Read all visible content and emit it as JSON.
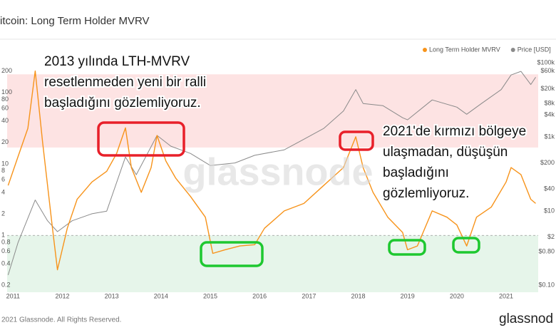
{
  "chart_data": {
    "type": "line",
    "title": "itcoin: Long Term Holder MVRV",
    "watermark": "glassnode",
    "footer": "2021 Glassnode. All Rights Reserved.",
    "logo": "glassnod",
    "ylog": true,
    "y2log": true,
    "xlim": [
      2010.88,
      2021.65
    ],
    "xticks": [
      2011,
      2012,
      2013,
      2014,
      2015,
      2016,
      2017,
      2018,
      2019,
      2020,
      2021
    ],
    "ylim": [
      0.16,
      280
    ],
    "yticks": [
      0.2,
      0.4,
      0.6,
      0.8,
      1,
      2,
      4,
      6,
      8,
      10,
      20,
      40,
      60,
      80,
      100,
      200
    ],
    "y2lim": [
      0.065,
      115000
    ],
    "y2ticks": [
      {
        "value": 0.1,
        "label": "$0.10"
      },
      {
        "value": 0.8,
        "label": "$0.80"
      },
      {
        "value": 2,
        "label": "$2"
      },
      {
        "value": 10,
        "label": "$10"
      },
      {
        "value": 40,
        "label": "$40"
      },
      {
        "value": 200,
        "label": "$200"
      },
      {
        "value": 1000,
        "label": "$1k"
      },
      {
        "value": 4000,
        "label": "$4k"
      },
      {
        "value": 8000,
        "label": "$8k"
      },
      {
        "value": 20000,
        "label": "$20k"
      },
      {
        "value": 60000,
        "label": "$60k"
      },
      {
        "value": 100000,
        "label": "$100k"
      }
    ],
    "reference_line": 1,
    "bands": [
      {
        "from": 17,
        "to": 180,
        "color": "#fde3e3"
      },
      {
        "from": 0.16,
        "to": 1,
        "color": "#e6f5ea"
      }
    ],
    "series": [
      {
        "name": "Long Term Holder MVRV",
        "color": "#f7931a",
        "x": [
          2010.9,
          2011.1,
          2011.3,
          2011.45,
          2011.6,
          2011.8,
          2011.9,
          2012.1,
          2012.3,
          2012.6,
          2012.9,
          2013.1,
          2013.28,
          2013.4,
          2013.6,
          2013.8,
          2013.92,
          2014.1,
          2014.3,
          2014.6,
          2014.9,
          2015.05,
          2015.3,
          2015.6,
          2015.9,
          2016.1,
          2016.5,
          2016.9,
          2017.3,
          2017.7,
          2017.95,
          2018.1,
          2018.3,
          2018.6,
          2018.9,
          2019.0,
          2019.2,
          2019.5,
          2019.8,
          2020.0,
          2020.2,
          2020.4,
          2020.7,
          2021.0,
          2021.1,
          2021.3,
          2021.5,
          2021.6
        ],
        "values": [
          5,
          12.6,
          31.6,
          200,
          20,
          1.26,
          0.33,
          1.26,
          3.2,
          5.6,
          7.9,
          14,
          32,
          8.9,
          4,
          8.9,
          25,
          11,
          6.3,
          3.5,
          1.8,
          0.56,
          0.63,
          0.71,
          0.74,
          1.26,
          2.2,
          2.8,
          5,
          8.9,
          24,
          8.9,
          4,
          1.8,
          1.1,
          0.63,
          0.71,
          2.2,
          1.8,
          1.4,
          0.71,
          1.8,
          2.5,
          5.6,
          8.9,
          7.1,
          3.2,
          2.8
        ]
      },
      {
        "name": "Price [USD]",
        "color": "#8a8a8a",
        "axis": "y2",
        "x": [
          2010.9,
          2011.1,
          2011.45,
          2011.7,
          2011.9,
          2012.2,
          2012.6,
          2012.9,
          2013.28,
          2013.5,
          2013.92,
          2014.2,
          2014.6,
          2015.0,
          2015.5,
          2015.9,
          2016.5,
          2016.9,
          2017.3,
          2017.7,
          2017.95,
          2018.1,
          2018.5,
          2018.9,
          2019.0,
          2019.5,
          2020.0,
          2020.2,
          2020.5,
          2020.9,
          2021.1,
          2021.3,
          2021.5,
          2021.6
        ],
        "values": [
          0.19,
          1.4,
          20,
          5.5,
          2.8,
          5.5,
          8.5,
          10,
          290,
          96,
          1100,
          565,
          360,
          170,
          200,
          320,
          450,
          870,
          1700,
          5000,
          19000,
          8000,
          7000,
          3300,
          2900,
          10000,
          6400,
          4100,
          8000,
          19000,
          47000,
          59000,
          26000,
          41000
        ]
      }
    ],
    "annotations": [
      {
        "lines": [
          "2013 yılında LTH-MVRV",
          "resetlenmeden yeni bir ralli",
          "başladığını gözlemliyoruz."
        ]
      },
      {
        "lines": [
          "2021'de kırmızı bölgeye",
          "ulaşmadan, düşüşün",
          "başladığını",
          "gözlemliyoruz."
        ]
      }
    ]
  }
}
